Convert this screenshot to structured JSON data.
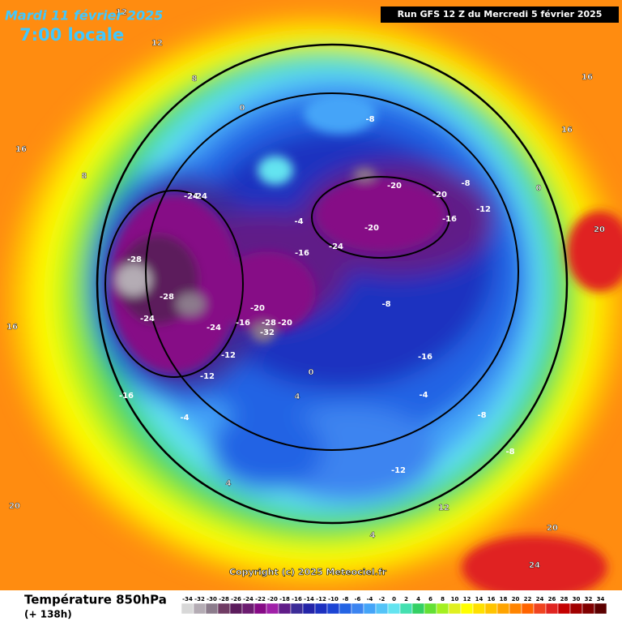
{
  "header": {
    "date": "Mardi 11 février 2025",
    "time": "7:00 locale",
    "run": "Run GFS 12 Z du Mercredi 5 février 2025"
  },
  "copyright": "Copyright (c) 2025 Meteociel.fr",
  "footer": {
    "title": "Température 850hPa",
    "lead": "(+ 138h)"
  },
  "colorbar": {
    "ticks": [
      -34,
      -32,
      -30,
      -28,
      -26,
      -24,
      -22,
      -20,
      -18,
      -16,
      -14,
      -12,
      -10,
      -8,
      -6,
      -4,
      -2,
      0,
      2,
      4,
      6,
      8,
      10,
      12,
      14,
      16,
      18,
      20,
      22,
      24,
      26,
      28,
      30,
      32,
      34
    ],
    "colors": [
      "#d8d8d8",
      "#b4acb4",
      "#8c7c8c",
      "#703c64",
      "#5c1c5c",
      "#6c1c70",
      "#860a86",
      "#a020a8",
      "#601c88",
      "#3c2c98",
      "#2424a8",
      "#1c30c0",
      "#1c44d4",
      "#2464e4",
      "#3c84f0",
      "#44a4f8",
      "#54c4f8",
      "#64e4f0",
      "#44e0b0",
      "#34d064",
      "#64e034",
      "#a4f020",
      "#e0f020",
      "#ffff00",
      "#ffe000",
      "#ffc400",
      "#ffa400",
      "#ff8400",
      "#ff6400",
      "#f04420",
      "#e02420",
      "#c40000",
      "#a00000",
      "#800000",
      "#5c0000"
    ]
  },
  "map_labels": [
    -28,
    -28,
    -28,
    -24,
    -24,
    -24,
    -24,
    -20,
    -20,
    -20,
    -20,
    -16,
    -16,
    -16,
    -16,
    -12,
    -12,
    -12,
    -8,
    -8,
    -8,
    -8,
    -4,
    -4,
    -4,
    0,
    0,
    0,
    4,
    4,
    4,
    8,
    8,
    12,
    12,
    16,
    16,
    16,
    20,
    20,
    20,
    24,
    -32,
    -16,
    -20,
    -24,
    -12,
    -8,
    12,
    16
  ]
}
